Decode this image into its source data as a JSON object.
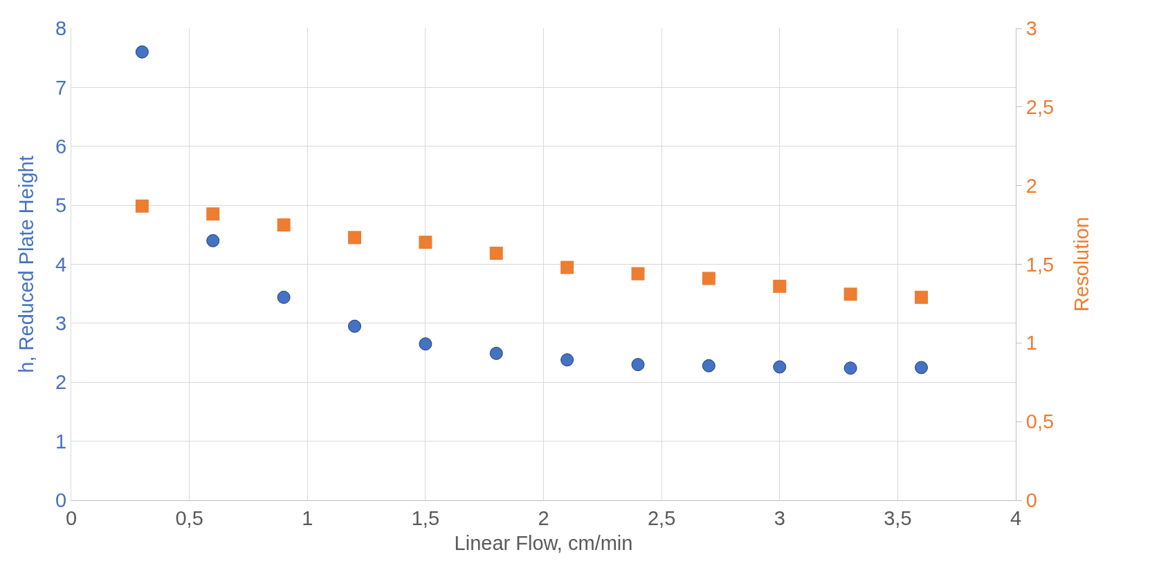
{
  "chart_data": {
    "type": "scatter",
    "xlabel": "Linear Flow, cm/min",
    "ylabel": "h, Reduced Plate Height",
    "y2label": "Resolution",
    "x": [
      0.3,
      0.6,
      0.9,
      1.2,
      1.5,
      1.8,
      2.1,
      2.4,
      2.7,
      3.0,
      3.3,
      3.6
    ],
    "series": [
      {
        "color": "#4472c4",
        "marker": "circle",
        "values": [
          7.6,
          4.4,
          3.44,
          2.95,
          2.65,
          2.49,
          2.38,
          2.3,
          2.28,
          2.26,
          2.24,
          2.25
        ]
      },
      {
        "color": "#ed7d31",
        "marker": "square",
        "axis": "y2",
        "values": [
          1.87,
          1.82,
          1.75,
          1.67,
          1.64,
          1.57,
          1.48,
          1.44,
          1.41,
          1.36,
          1.31,
          1.29
        ]
      }
    ],
    "xlim": [
      0,
      4
    ],
    "xticks": [
      0,
      {
        "value": 0.5,
        "label": "0,5"
      },
      1,
      {
        "value": 1.5,
        "label": "1,5"
      },
      2,
      {
        "value": 2.5,
        "label": "2,5"
      },
      3,
      {
        "value": 3.5,
        "label": "3,5"
      },
      4
    ],
    "ylim": [
      0,
      8
    ],
    "yticks": [
      0,
      1,
      2,
      3,
      4,
      5,
      6,
      7,
      8
    ],
    "y2lim": [
      0,
      3
    ],
    "y2ticks": [
      0,
      {
        "value": 0.5,
        "label": "0,5"
      },
      1,
      {
        "value": 1.5,
        "label": "1,5"
      },
      2,
      {
        "value": 2.5,
        "label": "2,5"
      },
      3
    ],
    "grid": true
  }
}
